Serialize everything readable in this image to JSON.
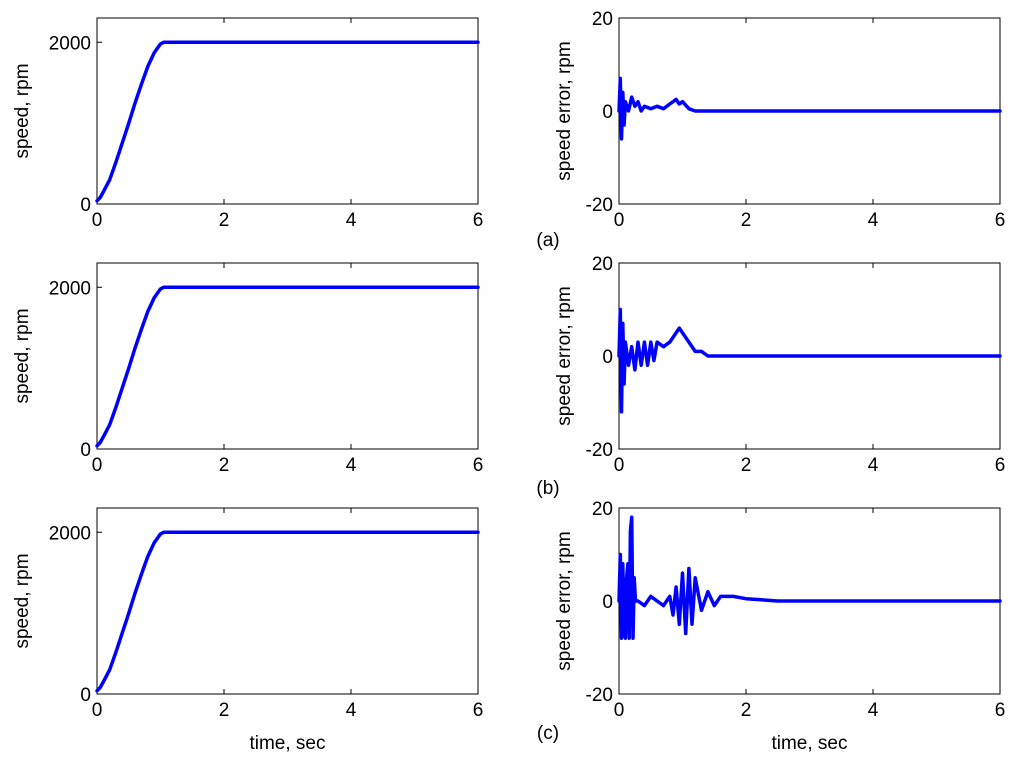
{
  "colors": {
    "series": "#0000ff",
    "axes": "#000000",
    "background": "#ffffff"
  },
  "panel_labels": [
    "(a)",
    "(b)",
    "(c)"
  ],
  "chart_data": [
    {
      "id": "speed-a",
      "type": "line",
      "panel": "(a)",
      "xlabel": "",
      "ylabel": "speed, rpm",
      "xlim": [
        0,
        6
      ],
      "ylim": [
        0,
        2300
      ],
      "xticks": [
        0,
        2,
        4,
        6
      ],
      "yticks": [
        0,
        2000
      ],
      "grid": false,
      "series": [
        {
          "x": [
            0,
            0.05,
            0.1,
            0.2,
            0.3,
            0.4,
            0.5,
            0.6,
            0.7,
            0.8,
            0.9,
            1.0,
            1.05,
            1.1,
            2,
            3,
            4,
            5,
            6
          ],
          "values": [
            40,
            80,
            150,
            300,
            520,
            760,
            1000,
            1250,
            1480,
            1700,
            1870,
            1980,
            2000,
            2000,
            2000,
            2000,
            2000,
            2000,
            2000
          ]
        }
      ]
    },
    {
      "id": "error-a",
      "type": "line",
      "panel": "(a)",
      "xlabel": "",
      "ylabel": "speed error, rpm",
      "xlim": [
        0,
        6
      ],
      "ylim": [
        -20,
        20
      ],
      "xticks": [
        0,
        2,
        4,
        6
      ],
      "yticks": [
        -20,
        0,
        20
      ],
      "grid": false,
      "series": [
        {
          "x": [
            0,
            0.02,
            0.04,
            0.06,
            0.08,
            0.1,
            0.15,
            0.2,
            0.25,
            0.3,
            0.35,
            0.4,
            0.5,
            0.6,
            0.7,
            0.8,
            0.9,
            0.95,
            1.0,
            1.1,
            1.2,
            2.0,
            3.0,
            4.0,
            5.0,
            6.0
          ],
          "values": [
            0,
            7,
            -6,
            4,
            -3,
            2,
            0,
            3,
            1,
            2,
            0,
            1,
            0.5,
            1,
            0.5,
            1.5,
            2.5,
            1.5,
            2,
            0.5,
            0,
            0,
            0,
            0,
            0,
            0
          ]
        }
      ]
    },
    {
      "id": "speed-b",
      "type": "line",
      "panel": "(b)",
      "xlabel": "",
      "ylabel": "speed, rpm",
      "xlim": [
        0,
        6
      ],
      "ylim": [
        0,
        2300
      ],
      "xticks": [
        0,
        2,
        4,
        6
      ],
      "yticks": [
        0,
        2000
      ],
      "grid": false,
      "series": [
        {
          "x": [
            0,
            0.05,
            0.1,
            0.2,
            0.3,
            0.4,
            0.5,
            0.6,
            0.7,
            0.8,
            0.9,
            1.0,
            1.05,
            1.1,
            2,
            3,
            4,
            5,
            6
          ],
          "values": [
            40,
            80,
            150,
            300,
            520,
            760,
            1000,
            1250,
            1480,
            1700,
            1870,
            1980,
            2000,
            2000,
            2000,
            2000,
            2000,
            2000,
            2000
          ]
        }
      ]
    },
    {
      "id": "error-b",
      "type": "line",
      "panel": "(b)",
      "xlabel": "",
      "ylabel": "speed error, rpm",
      "xlim": [
        0,
        6
      ],
      "ylim": [
        -20,
        20
      ],
      "xticks": [
        0,
        2,
        4,
        6
      ],
      "yticks": [
        -20,
        0,
        20
      ],
      "grid": false,
      "series": [
        {
          "x": [
            0,
            0.02,
            0.04,
            0.06,
            0.08,
            0.1,
            0.15,
            0.2,
            0.25,
            0.3,
            0.35,
            0.4,
            0.45,
            0.5,
            0.55,
            0.6,
            0.7,
            0.8,
            0.9,
            0.95,
            1.0,
            1.1,
            1.2,
            1.3,
            1.4,
            2.0,
            3.0,
            4.0,
            5.0,
            6.0
          ],
          "values": [
            0,
            10,
            -12,
            7,
            -6,
            3,
            -2,
            2,
            -3,
            3,
            -2,
            3,
            -2,
            3,
            -1,
            3,
            2,
            3,
            5,
            6,
            5,
            3,
            1,
            1,
            0,
            0,
            0,
            0,
            0,
            0
          ]
        }
      ]
    },
    {
      "id": "speed-c",
      "type": "line",
      "panel": "(c)",
      "xlabel": "time, sec",
      "ylabel": "speed, rpm",
      "xlim": [
        0,
        6
      ],
      "ylim": [
        0,
        2300
      ],
      "xticks": [
        0,
        2,
        4,
        6
      ],
      "yticks": [
        0,
        2000
      ],
      "grid": false,
      "series": [
        {
          "x": [
            0,
            0.05,
            0.1,
            0.2,
            0.3,
            0.4,
            0.5,
            0.6,
            0.7,
            0.8,
            0.9,
            1.0,
            1.05,
            1.1,
            2,
            3,
            4,
            5,
            6
          ],
          "values": [
            40,
            80,
            150,
            300,
            520,
            760,
            1000,
            1250,
            1480,
            1700,
            1870,
            1980,
            2000,
            2000,
            2000,
            2000,
            2000,
            2000,
            2000
          ]
        }
      ]
    },
    {
      "id": "error-c",
      "type": "line",
      "panel": "(c)",
      "xlabel": "time, sec",
      "ylabel": "speed error, rpm",
      "xlim": [
        0,
        6
      ],
      "ylim": [
        -20,
        20
      ],
      "xticks": [
        0,
        2,
        4,
        6
      ],
      "yticks": [
        -20,
        0,
        20
      ],
      "grid": false,
      "series": [
        {
          "x": [
            0,
            0.02,
            0.04,
            0.06,
            0.08,
            0.1,
            0.12,
            0.14,
            0.16,
            0.18,
            0.2,
            0.22,
            0.24,
            0.26,
            0.3,
            0.4,
            0.5,
            0.6,
            0.7,
            0.8,
            0.85,
            0.9,
            0.95,
            1.0,
            1.05,
            1.1,
            1.15,
            1.2,
            1.3,
            1.4,
            1.5,
            1.6,
            1.8,
            2.0,
            2.5,
            3.0,
            4.0,
            5.0,
            6.0
          ],
          "values": [
            0,
            10,
            -8,
            8,
            -7,
            -8,
            5,
            8,
            -8,
            15,
            18,
            -8,
            5,
            0,
            0,
            -1,
            1,
            0,
            -1,
            1,
            -3,
            3,
            -5,
            6,
            -7,
            7,
            -5,
            5,
            -2,
            2,
            -1,
            1,
            1,
            0.5,
            0,
            0,
            0,
            0,
            0
          ]
        }
      ]
    }
  ]
}
